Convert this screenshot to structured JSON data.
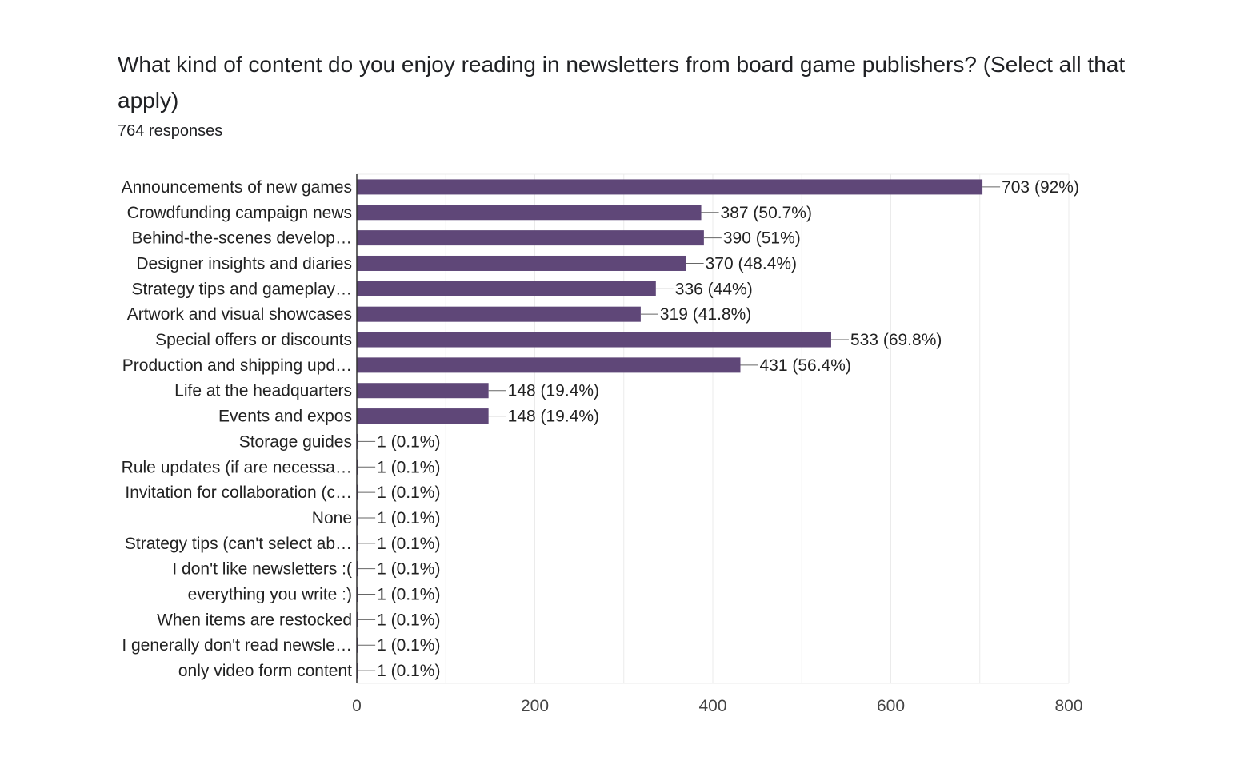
{
  "header": {
    "question": "What kind of content do you enjoy reading in newsletters from board game publishers? (Select all that apply)",
    "responses": "764 responses"
  },
  "chart_data": {
    "type": "bar",
    "orientation": "horizontal",
    "categories": [
      "Announcements of new games",
      "Crowdfunding campaign news",
      "Behind-the-scenes develop…",
      "Designer insights and diaries",
      "Strategy tips and gameplay…",
      "Artwork and visual showcases",
      "Special offers or discounts",
      "Production and shipping upd…",
      "Life at the headquarters",
      "Events and expos",
      "Storage guides",
      "Rule updates (if are necessa…",
      "Invitation for collaboration (c…",
      "None",
      "Strategy tips (can't select ab…",
      "I don't like newsletters :(",
      "everything you write :)",
      "When items are restocked",
      "I generally don't read newsle…",
      "only video form content"
    ],
    "values": [
      703,
      387,
      390,
      370,
      336,
      319,
      533,
      431,
      148,
      148,
      1,
      1,
      1,
      1,
      1,
      1,
      1,
      1,
      1,
      1
    ],
    "data_labels": [
      "703 (92%)",
      "387 (50.7%)",
      "390 (51%)",
      "370 (48.4%)",
      "336 (44%)",
      "319 (41.8%)",
      "533 (69.8%)",
      "431 (56.4%)",
      "148 (19.4%)",
      "148 (19.4%)",
      "1 (0.1%)",
      "1 (0.1%)",
      "1 (0.1%)",
      "1 (0.1%)",
      "1 (0.1%)",
      "1 (0.1%)",
      "1 (0.1%)",
      "1 (0.1%)",
      "1 (0.1%)",
      "1 (0.1%)"
    ],
    "xlim": [
      0,
      800
    ],
    "xticks": [
      "0",
      "200",
      "400",
      "600",
      "800"
    ],
    "grid": true,
    "bar_color": "#5f4778"
  }
}
